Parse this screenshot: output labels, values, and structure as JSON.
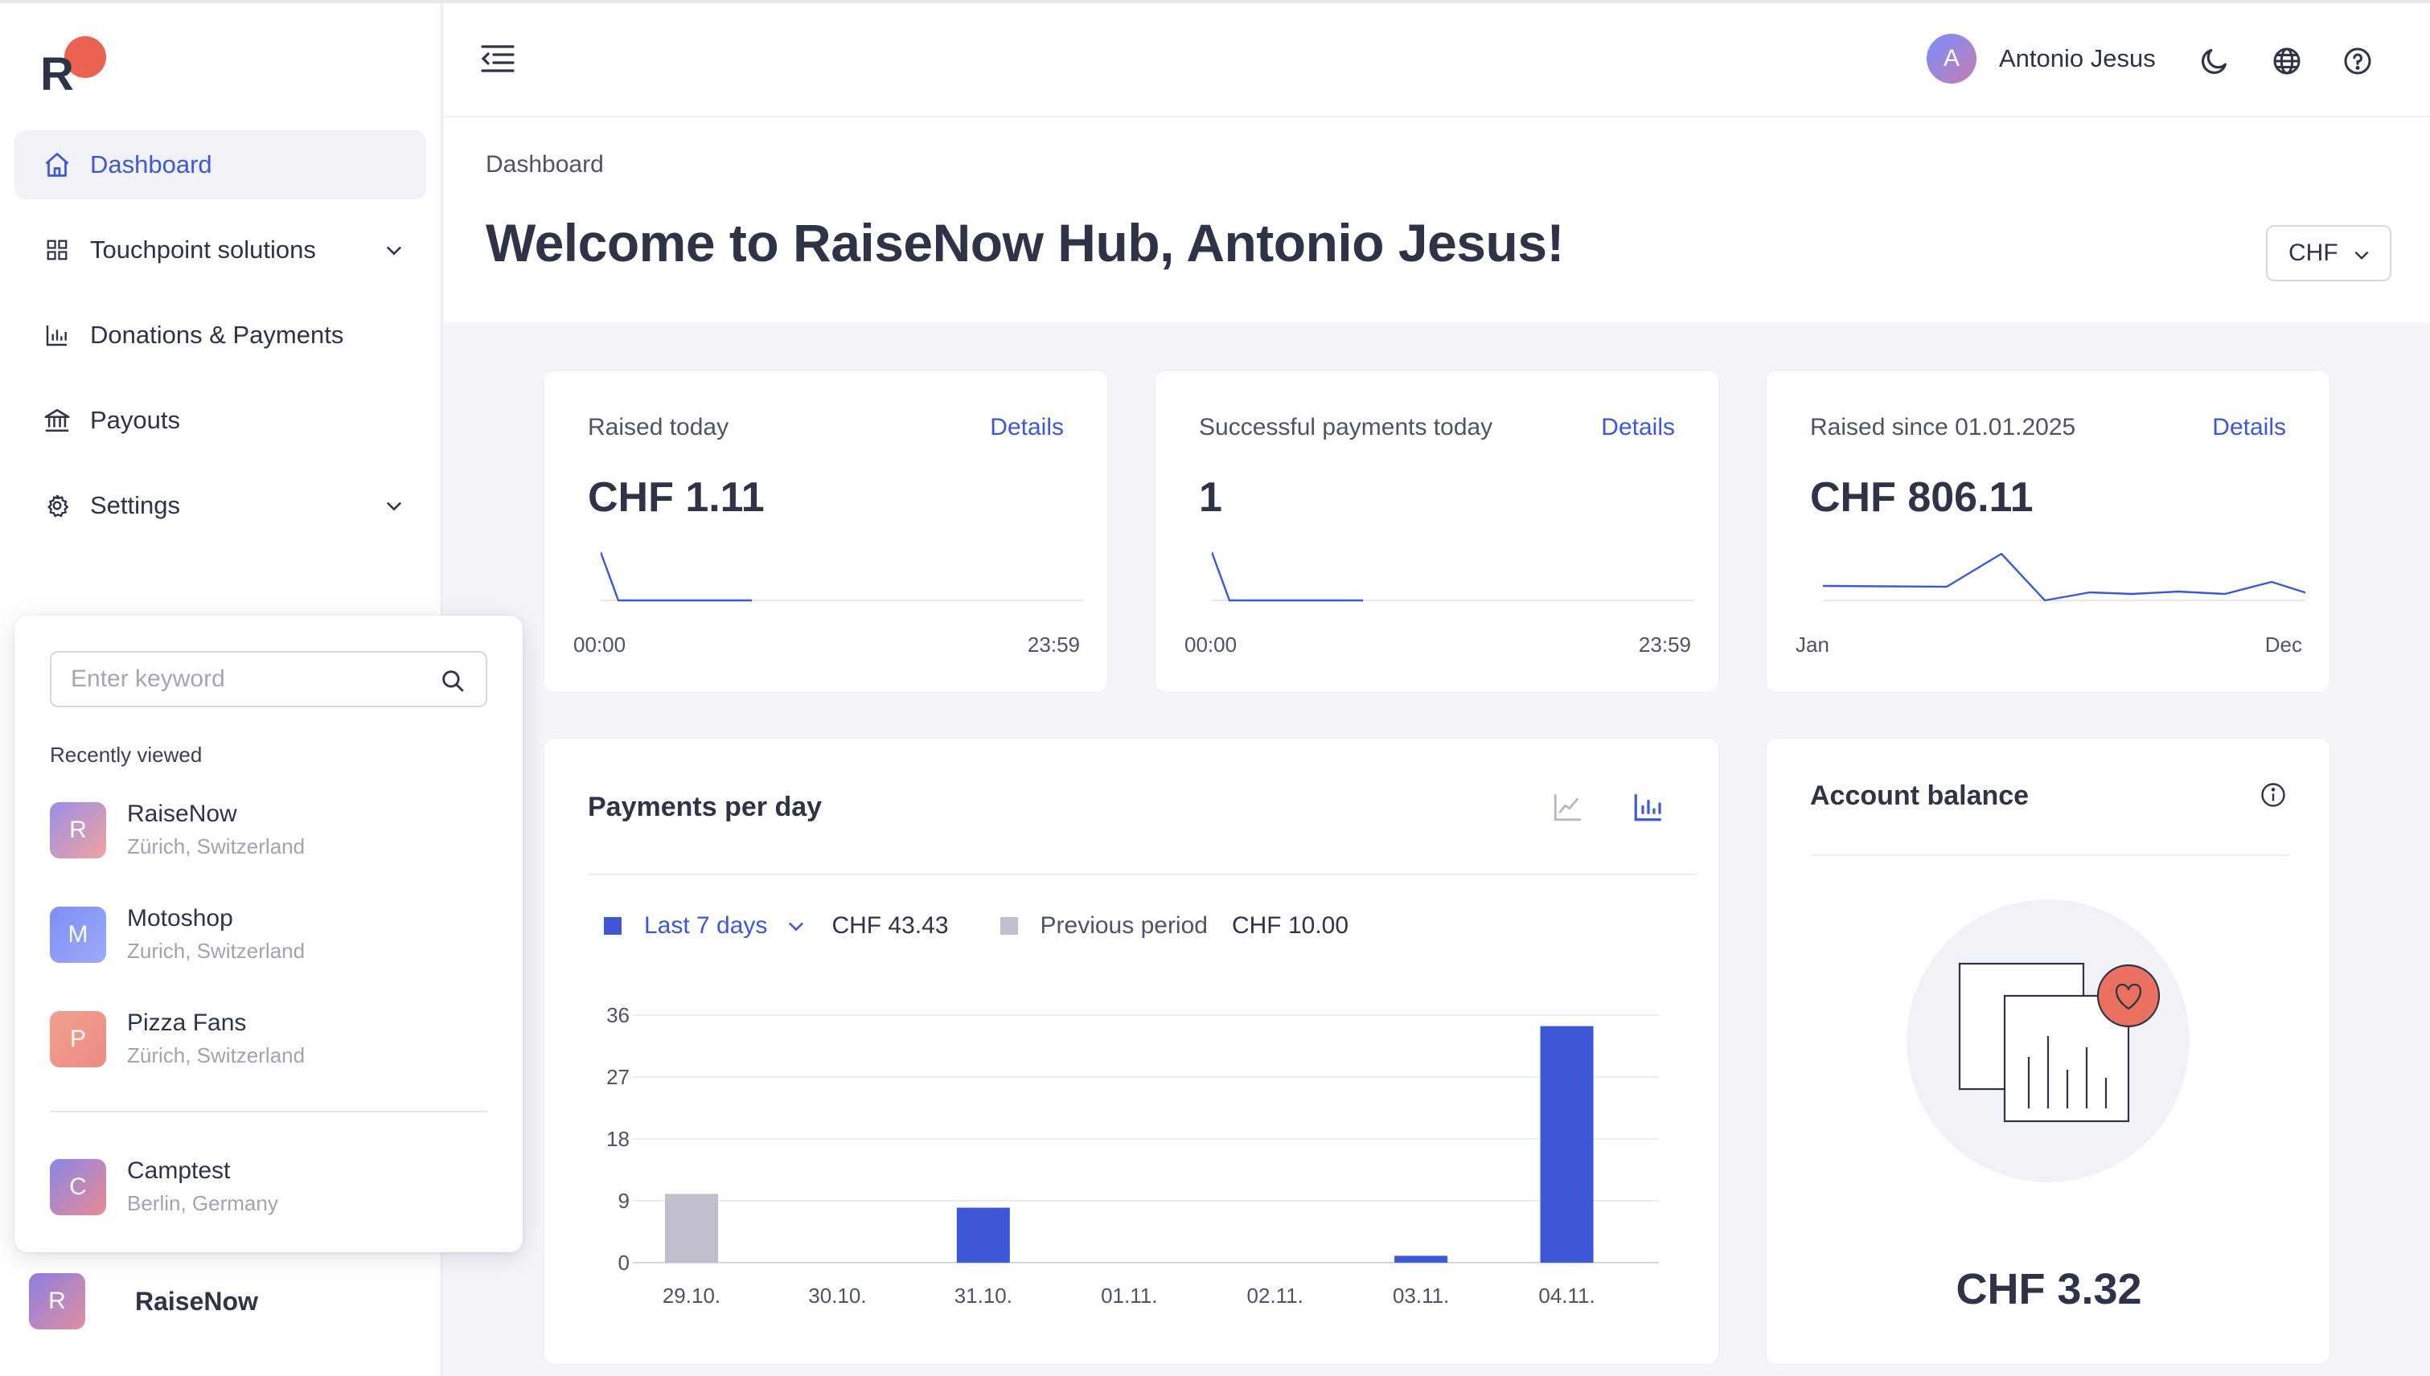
{
  "sidebar": {
    "logo_letter": "R",
    "nav": [
      {
        "label": "Dashboard",
        "icon": "home-icon",
        "active": true
      },
      {
        "label": "Touchpoint solutions",
        "icon": "grid-icon",
        "expandable": true
      },
      {
        "label": "Donations & Payments",
        "icon": "bar-chart-icon"
      },
      {
        "label": "Payouts",
        "icon": "bank-icon"
      },
      {
        "label": "Settings",
        "icon": "gear-icon",
        "expandable": true
      }
    ],
    "current_org": {
      "initial": "R",
      "name": "RaiseNow"
    }
  },
  "org_switcher": {
    "search_placeholder": "Enter keyword",
    "recent_label": "Recently viewed",
    "recent": [
      {
        "initial": "R",
        "name": "RaiseNow",
        "location": "Zürich, Switzerland"
      },
      {
        "initial": "M",
        "name": "Motoshop",
        "location": "Zurich, Switzerland"
      },
      {
        "initial": "P",
        "name": "Pizza Fans",
        "location": "Zürich, Switzerland"
      }
    ],
    "other": [
      {
        "initial": "C",
        "name": "Camptest",
        "location": "Berlin, Germany"
      }
    ]
  },
  "header": {
    "user_initial": "A",
    "user_name": "Antonio Jesus"
  },
  "page": {
    "breadcrumb": "Dashboard",
    "title": "Welcome to RaiseNow Hub, Antonio Jesus!",
    "currency": "CHF"
  },
  "stats": [
    {
      "label": "Raised today",
      "link": "Details",
      "value": "CHF 1.11",
      "axis_start": "00:00",
      "axis_end": "23:59"
    },
    {
      "label": "Successful payments today",
      "link": "Details",
      "value": "1",
      "axis_start": "00:00",
      "axis_end": "23:59"
    },
    {
      "label": "Raised since 01.01.2025",
      "link": "Details",
      "value": "CHF 806.11",
      "axis_start": "Jan",
      "axis_end": "Dec"
    }
  ],
  "payments_chart": {
    "title": "Payments per day",
    "range_label": "Last 7 days",
    "range_total": "CHF 43.43",
    "previous_label": "Previous period",
    "previous_total": "CHF 10.00"
  },
  "account_balance": {
    "title": "Account balance",
    "value": "CHF 3.32"
  },
  "chart_data": {
    "type": "bar",
    "categories": [
      "29.10.",
      "30.10.",
      "31.10.",
      "01.11.",
      "02.11.",
      "03.11.",
      "04.11."
    ],
    "series": [
      {
        "name": "Last 7 days",
        "color": "#3d57d6",
        "values": [
          0,
          0,
          8,
          0,
          0,
          1,
          34.4
        ]
      },
      {
        "name": "Previous period",
        "color": "#bfc0cc",
        "values": [
          10,
          0,
          0,
          0,
          0,
          0,
          0
        ]
      }
    ],
    "y_ticks": [
      0,
      9,
      18,
      27,
      36
    ],
    "ylim": [
      0,
      36
    ],
    "grid": true
  },
  "colors": {
    "accent": "#3d57d6",
    "previous": "#bfc0cc",
    "text": "#2e3347"
  }
}
